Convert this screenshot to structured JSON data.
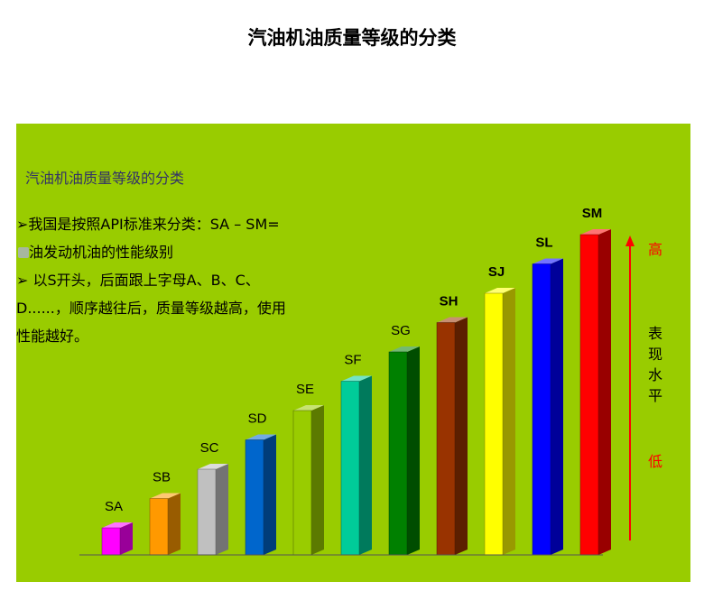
{
  "title": "汽油机油质量等级的分类",
  "slide": {
    "heading": "汽油机油质量等级的分类",
    "bullet1_a": "➢我国是按照API标准来分类：SA – SM=",
    "bullet1_b": "油发动机油的性能级别",
    "bullet2_a": "➢  以S开头，后面跟上字母A、B、C、",
    "bullet2_b": "D......，顺序越往后，质量等级越高，使用",
    "bullet2_c": "性能越好。"
  },
  "axis": {
    "high": "高",
    "low": "低",
    "label_chars": [
      "表",
      "现",
      "水",
      "平"
    ],
    "arrow_color": "#ff0000"
  },
  "chart_data": {
    "type": "bar",
    "title": "",
    "categories": [
      "SA",
      "SB",
      "SC",
      "SD",
      "SE",
      "SF",
      "SG",
      "SH",
      "SJ",
      "SL",
      "SM"
    ],
    "values": [
      1,
      2,
      3,
      4,
      5,
      6,
      7,
      8,
      9,
      10,
      11
    ],
    "colors": [
      "#ff00ff",
      "#ff9900",
      "#c0c0c0",
      "#0066cc",
      "#99cc00",
      "#00cc99",
      "#008000",
      "#993300",
      "#ffff00",
      "#0000ff",
      "#ff0000"
    ],
    "xlabel": "",
    "ylabel": "表现水平",
    "grid": false,
    "legend": "none"
  }
}
